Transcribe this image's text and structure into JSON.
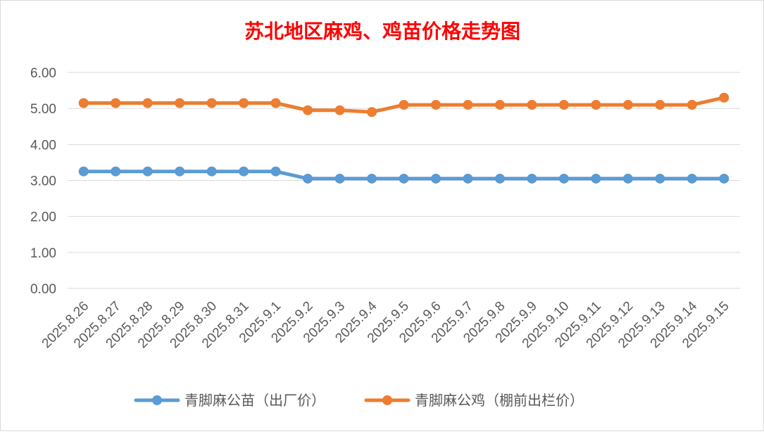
{
  "chart_data": {
    "type": "line",
    "title": "苏北地区麻鸡、鸡苗价格走势图",
    "xlabel": "",
    "ylabel": "",
    "ylim": [
      0,
      6
    ],
    "yticks": [
      "0.00",
      "1.00",
      "2.00",
      "3.00",
      "4.00",
      "5.00",
      "6.00"
    ],
    "grid": true,
    "legend": "bottom",
    "categories": [
      "2025.8.26",
      "2025.8.27",
      "2025.8.28",
      "2025.8.29",
      "2025.8.30",
      "2025.8.31",
      "2025.9.1",
      "2025.9.2",
      "2025.9.3",
      "2025.9.4",
      "2025.9.5",
      "2025.9.6",
      "2025.9.7",
      "2025.9.8",
      "2025.9.9",
      "2025.9.10",
      "2025.9.11",
      "2025.9.12",
      "2025.9.13",
      "2025.9.14",
      "2025.9.15"
    ],
    "series": [
      {
        "name": "青脚麻公苗（出厂价）",
        "color": "#5b9bd5",
        "values": [
          3.25,
          3.25,
          3.25,
          3.25,
          3.25,
          3.25,
          3.25,
          3.05,
          3.05,
          3.05,
          3.05,
          3.05,
          3.05,
          3.05,
          3.05,
          3.05,
          3.05,
          3.05,
          3.05,
          3.05,
          3.05
        ]
      },
      {
        "name": "青脚麻公鸡（棚前出栏价）",
        "color": "#ed7d31",
        "values": [
          5.15,
          5.15,
          5.15,
          5.15,
          5.15,
          5.15,
          5.15,
          4.95,
          4.95,
          4.9,
          5.1,
          5.1,
          5.1,
          5.1,
          5.1,
          5.1,
          5.1,
          5.1,
          5.1,
          5.1,
          5.3
        ]
      }
    ]
  }
}
